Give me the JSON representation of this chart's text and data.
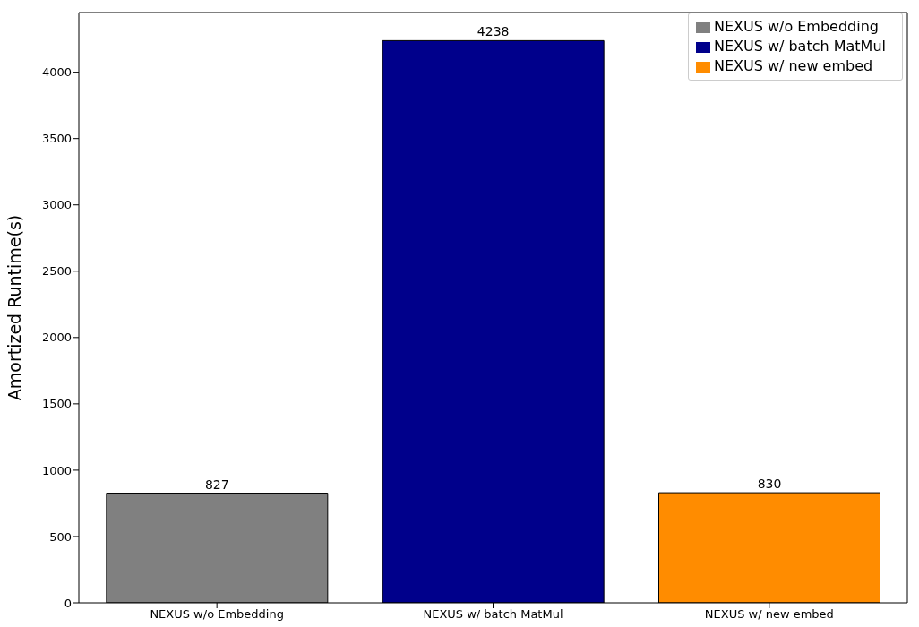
{
  "chart_data": {
    "type": "bar",
    "ylabel": "Amortized Runtime(s)",
    "categories": [
      "NEXUS w/o Embedding",
      "NEXUS w/ batch MatMul",
      "NEXUS w/ new embed"
    ],
    "stacked": true,
    "series": [
      {
        "name": "NEXUS w/o Embedding",
        "color": "#808080",
        "values": [
          827,
          null,
          null
        ]
      },
      {
        "name": "NEXUS w/ batch MatMul",
        "color": "#00008b",
        "values": [
          null,
          4238,
          null
        ]
      },
      {
        "name": "NEXUS w/ new embed",
        "color": "#ff8c00",
        "values": [
          null,
          null,
          830
        ]
      }
    ],
    "ylim": [
      0,
      4450
    ],
    "yticks": [
      0,
      500,
      1000,
      1500,
      2000,
      2500,
      3000,
      3500,
      4000
    ],
    "data_labels": true,
    "legend": "top right",
    "grid": false
  }
}
